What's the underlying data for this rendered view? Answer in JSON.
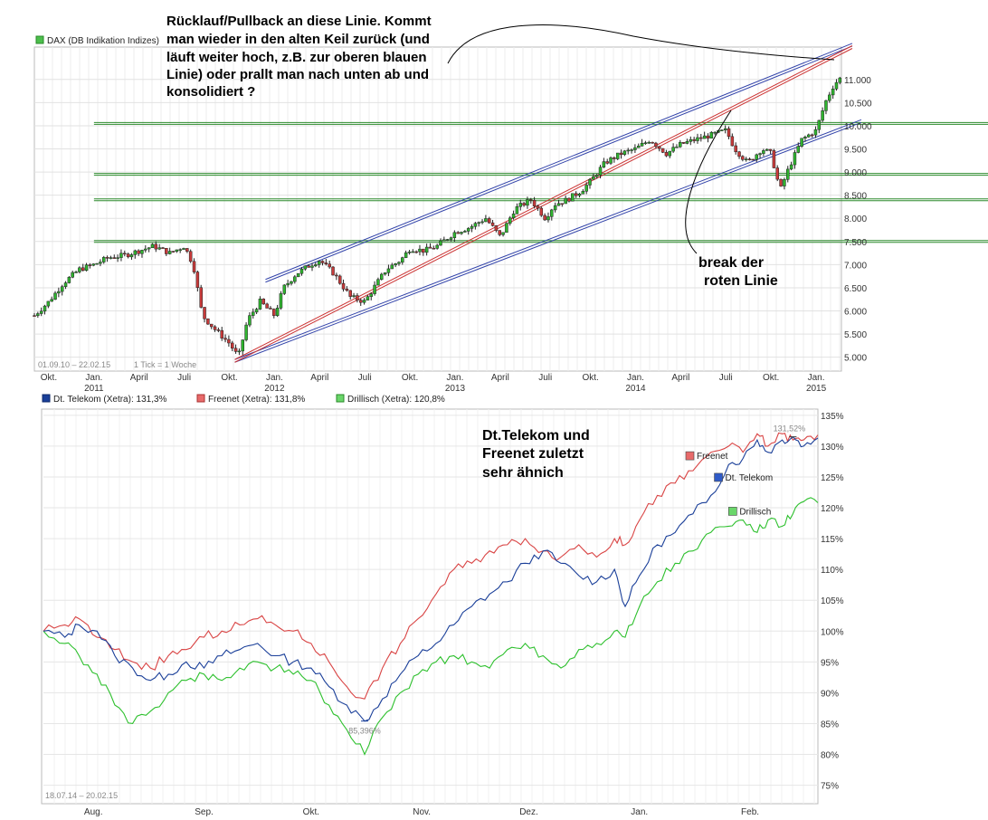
{
  "chart_data": [
    {
      "type": "candlestick",
      "title": "DAX (DB Indikation Indizes)",
      "period_label": "01.09.10 – 22.02.15",
      "tick_label": "1 Tick = 1 Woche",
      "x_range": [
        2010.67,
        2015.14
      ],
      "ylim": [
        4700,
        11700
      ],
      "y_ticks": [
        {
          "value": 5000,
          "label": "5.000"
        },
        {
          "value": 5500,
          "label": "5.500"
        },
        {
          "value": 6000,
          "label": "6.000"
        },
        {
          "value": 6500,
          "label": "6.500"
        },
        {
          "value": 7000,
          "label": "7.000"
        },
        {
          "value": 7500,
          "label": "7.500"
        },
        {
          "value": 8000,
          "label": "8.000"
        },
        {
          "value": 8500,
          "label": "8.500"
        },
        {
          "value": 9000,
          "label": "9.000"
        },
        {
          "value": 9500,
          "label": "9.500"
        },
        {
          "value": 10000,
          "label": "10.000"
        },
        {
          "value": 10500,
          "label": "10.500"
        },
        {
          "value": 11000,
          "label": "11.000"
        }
      ],
      "x_ticks": [
        {
          "t": 2010.75,
          "label": "Okt."
        },
        {
          "t": 2011.0,
          "label": "Jan.",
          "year": "2011"
        },
        {
          "t": 2011.25,
          "label": "April"
        },
        {
          "t": 2011.5,
          "label": "Juli"
        },
        {
          "t": 2011.75,
          "label": "Okt."
        },
        {
          "t": 2012.0,
          "label": "Jan.",
          "year": "2012"
        },
        {
          "t": 2012.25,
          "label": "April"
        },
        {
          "t": 2012.5,
          "label": "Juli"
        },
        {
          "t": 2012.75,
          "label": "Okt."
        },
        {
          "t": 2013.0,
          "label": "Jan.",
          "year": "2013"
        },
        {
          "t": 2013.25,
          "label": "April"
        },
        {
          "t": 2013.5,
          "label": "Juli"
        },
        {
          "t": 2013.75,
          "label": "Okt."
        },
        {
          "t": 2014.0,
          "label": "Jan.",
          "year": "2014"
        },
        {
          "t": 2014.25,
          "label": "April"
        },
        {
          "t": 2014.5,
          "label": "Juli"
        },
        {
          "t": 2014.75,
          "label": "Okt."
        },
        {
          "t": 2015.0,
          "label": "Jan.",
          "year": "2015"
        }
      ],
      "closes": [
        [
          2010.67,
          5900
        ],
        [
          2010.75,
          6200
        ],
        [
          2010.83,
          6600
        ],
        [
          2010.92,
          6900
        ],
        [
          2011.0,
          7000
        ],
        [
          2011.08,
          7150
        ],
        [
          2011.17,
          7200
        ],
        [
          2011.25,
          7300
        ],
        [
          2011.33,
          7400
        ],
        [
          2011.42,
          7250
        ],
        [
          2011.5,
          7400
        ],
        [
          2011.55,
          7000
        ],
        [
          2011.6,
          5900
        ],
        [
          2011.67,
          5600
        ],
        [
          2011.75,
          5300
        ],
        [
          2011.8,
          5000
        ],
        [
          2011.85,
          5800
        ],
        [
          2011.92,
          6200
        ],
        [
          2012.0,
          5900
        ],
        [
          2012.05,
          6500
        ],
        [
          2012.12,
          6800
        ],
        [
          2012.2,
          7000
        ],
        [
          2012.25,
          7100
        ],
        [
          2012.33,
          6800
        ],
        [
          2012.42,
          6300
        ],
        [
          2012.5,
          6200
        ],
        [
          2012.55,
          6500
        ],
        [
          2012.62,
          6900
        ],
        [
          2012.7,
          7100
        ],
        [
          2012.75,
          7350
        ],
        [
          2012.83,
          7300
        ],
        [
          2012.9,
          7400
        ],
        [
          2013.0,
          7700
        ],
        [
          2013.08,
          7800
        ],
        [
          2013.17,
          8000
        ],
        [
          2013.25,
          7600
        ],
        [
          2013.33,
          8200
        ],
        [
          2013.42,
          8400
        ],
        [
          2013.5,
          8000
        ],
        [
          2013.55,
          8300
        ],
        [
          2013.62,
          8400
        ],
        [
          2013.7,
          8600
        ],
        [
          2013.75,
          8800
        ],
        [
          2013.83,
          9200
        ],
        [
          2013.92,
          9400
        ],
        [
          2014.0,
          9500
        ],
        [
          2014.08,
          9700
        ],
        [
          2014.17,
          9400
        ],
        [
          2014.25,
          9600
        ],
        [
          2014.33,
          9700
        ],
        [
          2014.42,
          9800
        ],
        [
          2014.5,
          9900
        ],
        [
          2014.55,
          9500
        ],
        [
          2014.62,
          9200
        ],
        [
          2014.7,
          9500
        ],
        [
          2014.75,
          9400
        ],
        [
          2014.8,
          8600
        ],
        [
          2014.85,
          9100
        ],
        [
          2014.92,
          9700
        ],
        [
          2015.0,
          9900
        ],
        [
          2015.05,
          10500
        ],
        [
          2015.1,
          10900
        ],
        [
          2015.14,
          11050
        ]
      ],
      "levels": [
        7500,
        8400,
        8950,
        10050
      ],
      "channel_lines": [
        {
          "color": "#3344aa",
          "t1": 2011.78,
          "v1": 4920,
          "t2": 2015.25,
          "v2": 10100
        },
        {
          "color": "#3344aa",
          "t1": 2011.95,
          "v1": 6650,
          "t2": 2015.2,
          "v2": 11750
        },
        {
          "color": "#cc3333",
          "t1": 2011.78,
          "v1": 4920,
          "t2": 2015.2,
          "v2": 11700
        }
      ],
      "annotations": {
        "question": [
          "Rücklauf/Pullback an diese Linie. Kommt",
          "man wieder in den alten Keil zurück (und",
          "läuft weiter hoch, z.B. zur oberen blauen",
          "Linie) oder prallt man nach unten ab und",
          "konsolidiert ?"
        ],
        "break": [
          "break der",
          "roten Linie"
        ]
      }
    },
    {
      "type": "line",
      "period_label": "18.07.14 – 20.02.15",
      "x_range": [
        "2014-07-18",
        "2015-02-20"
      ],
      "ylim": [
        72,
        136
      ],
      "y_ticks": [
        {
          "value": 75,
          "label": "75%"
        },
        {
          "value": 80,
          "label": "80%"
        },
        {
          "value": 85,
          "label": "85%"
        },
        {
          "value": 90,
          "label": "90%"
        },
        {
          "value": 95,
          "label": "95%"
        },
        {
          "value": 100,
          "label": "100%"
        },
        {
          "value": 105,
          "label": "105%"
        },
        {
          "value": 110,
          "label": "110%"
        },
        {
          "value": 115,
          "label": "115%"
        },
        {
          "value": 120,
          "label": "120%"
        },
        {
          "value": 125,
          "label": "125%"
        },
        {
          "value": 130,
          "label": "130%"
        },
        {
          "value": 135,
          "label": "135%"
        }
      ],
      "x_ticks": [
        {
          "d": 14,
          "label": "Aug."
        },
        {
          "d": 45,
          "label": "Sep."
        },
        {
          "d": 75,
          "label": "Okt."
        },
        {
          "d": 106,
          "label": "Nov."
        },
        {
          "d": 136,
          "label": "Dez."
        },
        {
          "d": 167,
          "label": "Jan."
        },
        {
          "d": 198,
          "label": "Feb."
        }
      ],
      "days_total": 217,
      "series": [
        {
          "name": "Dt. Telekom (Xetra)",
          "legend": "Dt. Telekom (Xetra): 131,3%",
          "short": "Dt. Telekom",
          "color": "#1a3f99",
          "points": [
            [
              0,
              100
            ],
            [
              6,
              99
            ],
            [
              10,
              101
            ],
            [
              15,
              100
            ],
            [
              20,
              96
            ],
            [
              25,
              94
            ],
            [
              30,
              92
            ],
            [
              35,
              93
            ],
            [
              40,
              95
            ],
            [
              45,
              94
            ],
            [
              50,
              96
            ],
            [
              55,
              97
            ],
            [
              60,
              98
            ],
            [
              65,
              96
            ],
            [
              70,
              95
            ],
            [
              75,
              94
            ],
            [
              80,
              91
            ],
            [
              85,
              88
            ],
            [
              90,
              85.4
            ],
            [
              95,
              89
            ],
            [
              100,
              93
            ],
            [
              105,
              96
            ],
            [
              110,
              98
            ],
            [
              115,
              101
            ],
            [
              120,
              104
            ],
            [
              125,
              106
            ],
            [
              130,
              108
            ],
            [
              135,
              111
            ],
            [
              140,
              113
            ],
            [
              145,
              111
            ],
            [
              150,
              109
            ],
            [
              155,
              108
            ],
            [
              160,
              110
            ],
            [
              163,
              104
            ],
            [
              167,
              109
            ],
            [
              172,
              114
            ],
            [
              177,
              116
            ],
            [
              182,
              119
            ],
            [
              187,
              122
            ],
            [
              192,
              127
            ],
            [
              196,
              128
            ],
            [
              200,
              131
            ],
            [
              203,
              129
            ],
            [
              207,
              131
            ],
            [
              210,
              131.5
            ],
            [
              213,
              130
            ],
            [
              217,
              131.3
            ]
          ]
        },
        {
          "name": "Freenet (Xetra)",
          "legend": "Freenet (Xetra): 131,8%",
          "short": "Freenet",
          "color": "#d94444",
          "points": [
            [
              0,
              100
            ],
            [
              6,
              101
            ],
            [
              10,
              102
            ],
            [
              15,
              99
            ],
            [
              20,
              97
            ],
            [
              25,
              95
            ],
            [
              30,
              94
            ],
            [
              35,
              96
            ],
            [
              40,
              97
            ],
            [
              45,
              99
            ],
            [
              50,
              100
            ],
            [
              55,
              101
            ],
            [
              60,
              102
            ],
            [
              65,
              101
            ],
            [
              70,
              100
            ],
            [
              75,
              98
            ],
            [
              80,
              95
            ],
            [
              85,
              91
            ],
            [
              90,
              89
            ],
            [
              95,
              94
            ],
            [
              100,
              98
            ],
            [
              105,
              102
            ],
            [
              110,
              106
            ],
            [
              115,
              110
            ],
            [
              120,
              111
            ],
            [
              125,
              113
            ],
            [
              130,
              114
            ],
            [
              135,
              115
            ],
            [
              140,
              113
            ],
            [
              145,
              112
            ],
            [
              150,
              114
            ],
            [
              155,
              112
            ],
            [
              160,
              115
            ],
            [
              163,
              114
            ],
            [
              167,
              118
            ],
            [
              172,
              122
            ],
            [
              177,
              124
            ],
            [
              182,
              126
            ],
            [
              187,
              129
            ],
            [
              192,
              130
            ],
            [
              196,
              129
            ],
            [
              200,
              132
            ],
            [
              203,
              130
            ],
            [
              207,
              132
            ],
            [
              210,
              131
            ],
            [
              213,
              131
            ],
            [
              217,
              131.8
            ]
          ]
        },
        {
          "name": "Drillisch (Xetra)",
          "legend": "Drillisch (Xetra): 120,8%",
          "short": "Drillisch",
          "color": "#2dc02d",
          "points": [
            [
              0,
              100
            ],
            [
              6,
              98
            ],
            [
              10,
              96
            ],
            [
              15,
              93
            ],
            [
              20,
              88
            ],
            [
              25,
              85
            ],
            [
              30,
              87
            ],
            [
              35,
              90
            ],
            [
              40,
              92
            ],
            [
              45,
              93
            ],
            [
              50,
              92
            ],
            [
              55,
              94
            ],
            [
              60,
              95
            ],
            [
              65,
              94
            ],
            [
              70,
              93
            ],
            [
              75,
              92
            ],
            [
              80,
              88
            ],
            [
              85,
              84
            ],
            [
              90,
              80
            ],
            [
              95,
              86
            ],
            [
              100,
              90
            ],
            [
              105,
              93
            ],
            [
              110,
              95
            ],
            [
              115,
              96
            ],
            [
              120,
              95
            ],
            [
              125,
              94
            ],
            [
              130,
              97
            ],
            [
              135,
              98
            ],
            [
              140,
              96
            ],
            [
              145,
              94
            ],
            [
              150,
              97
            ],
            [
              155,
              98
            ],
            [
              160,
              100
            ],
            [
              163,
              99
            ],
            [
              167,
              104
            ],
            [
              172,
              108
            ],
            [
              177,
              111
            ],
            [
              182,
              113
            ],
            [
              187,
              116
            ],
            [
              192,
              117
            ],
            [
              196,
              118
            ],
            [
              200,
              116
            ],
            [
              203,
              118
            ],
            [
              207,
              117
            ],
            [
              210,
              119
            ],
            [
              213,
              121
            ],
            [
              217,
              120.8
            ]
          ]
        }
      ],
      "max_label": "131,52%",
      "min_label": "85,396%",
      "annotation": [
        "Dt.Telekom und",
        "Freenet zuletzt",
        "sehr ähnich"
      ]
    }
  ]
}
